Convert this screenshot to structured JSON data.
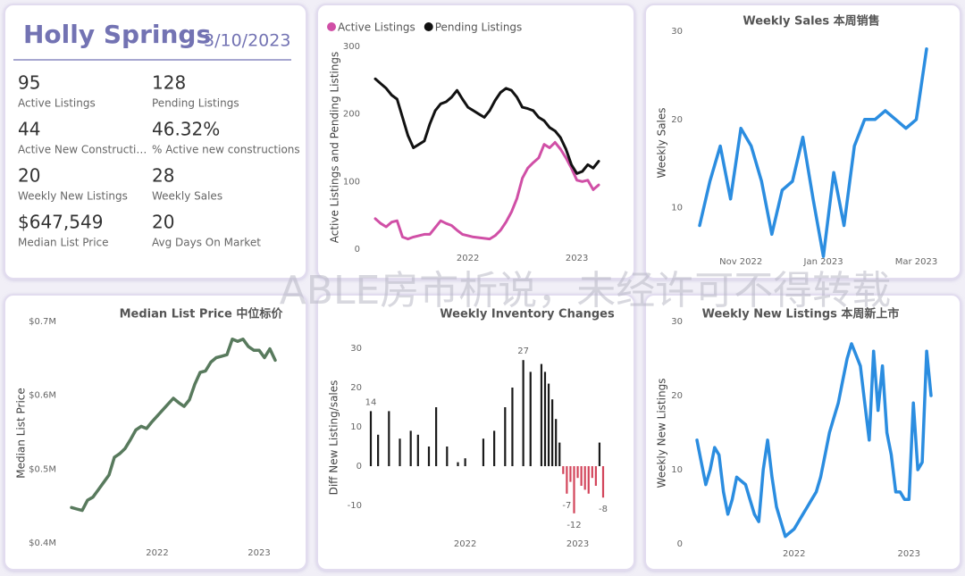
{
  "kpi_panel": {
    "title": "Holly Springs",
    "date": "3/10/2023",
    "items": [
      {
        "value": "95",
        "label": "Active Listings"
      },
      {
        "value": "128",
        "label": "Pending Listings"
      },
      {
        "value": "44",
        "label": "Active New Constructi…"
      },
      {
        "value": "46.32%",
        "label": "% Active new constructions"
      },
      {
        "value": "20",
        "label": "Weekly New Listings"
      },
      {
        "value": "28",
        "label": "Weekly Sales"
      },
      {
        "value": "$647,549",
        "label": "Median List Price"
      },
      {
        "value": "20",
        "label": "Avg Days On Market"
      }
    ]
  },
  "watermark": "ABLE房市析说，未经许可不得转载",
  "chart_data": [
    {
      "type": "line",
      "y_label": "Active Listings and Pending Listings",
      "legend": "top-left",
      "categories": [
        null,
        null,
        null,
        null,
        null,
        null,
        null,
        null,
        null,
        null,
        null,
        null,
        null,
        null,
        null,
        null,
        null,
        "2022",
        null,
        null,
        null,
        null,
        null,
        null,
        null,
        null,
        null,
        null,
        null,
        null,
        null,
        null,
        null,
        null,
        null,
        null,
        null,
        "2023",
        null,
        null,
        null,
        null
      ],
      "series": [
        {
          "name": "Active Listings",
          "color": "#d04fa6",
          "values": [
            45,
            38,
            33,
            40,
            42,
            18,
            15,
            18,
            20,
            22,
            22,
            32,
            42,
            38,
            35,
            28,
            22,
            20,
            18,
            17,
            16,
            15,
            20,
            28,
            40,
            55,
            75,
            105,
            120,
            128,
            135,
            155,
            150,
            158,
            148,
            135,
            120,
            102,
            100,
            102,
            88,
            95
          ]
        },
        {
          "name": "Pending Listings",
          "color": "#111111",
          "values": [
            252,
            245,
            238,
            228,
            222,
            195,
            168,
            150,
            155,
            160,
            185,
            205,
            215,
            218,
            225,
            235,
            222,
            210,
            205,
            200,
            195,
            205,
            220,
            232,
            238,
            235,
            225,
            210,
            208,
            205,
            195,
            190,
            180,
            175,
            165,
            148,
            125,
            112,
            115,
            125,
            120,
            130
          ]
        }
      ],
      "ylim": [
        0,
        300
      ],
      "yticks": [
        0,
        100,
        200,
        300
      ]
    },
    {
      "type": "line",
      "title": "Weekly Sales 本周销售",
      "y_label": "Weekly Sales",
      "categories": [
        null,
        null,
        null,
        null,
        "Nov 2022",
        null,
        null,
        null,
        null,
        null,
        null,
        null,
        "Jan 2023",
        null,
        null,
        null,
        null,
        null,
        null,
        null,
        null,
        "Mar 2023",
        null
      ],
      "values": [
        8,
        13,
        17,
        11,
        19,
        17,
        13,
        7,
        12,
        13,
        18,
        11,
        4.5,
        14,
        8,
        17,
        20,
        20,
        21,
        20,
        19,
        20,
        28
      ],
      "color": "#2b8de0",
      "ylim": [
        4,
        30
      ],
      "yticks": [
        10,
        20,
        30
      ]
    },
    {
      "type": "line",
      "title": "Median List Price  中位标价",
      "y_label": "Median List Price",
      "categories": [
        null,
        null,
        null,
        null,
        null,
        null,
        null,
        null,
        null,
        null,
        null,
        null,
        null,
        null,
        null,
        null,
        "2022",
        null,
        null,
        null,
        null,
        null,
        null,
        null,
        null,
        null,
        null,
        null,
        null,
        null,
        null,
        null,
        null,
        null,
        null,
        "2023",
        null,
        null,
        null
      ],
      "values": [
        448000,
        446000,
        444000,
        458000,
        462000,
        472000,
        482000,
        492000,
        516000,
        521000,
        528000,
        540000,
        553000,
        558000,
        555000,
        564000,
        572000,
        580000,
        588000,
        596000,
        590000,
        585000,
        594000,
        615000,
        631000,
        633000,
        645000,
        651000,
        653000,
        655000,
        676000,
        673000,
        676000,
        666000,
        661000,
        661000,
        651000,
        663000,
        647549
      ],
      "color": "#587a5d",
      "ylim": [
        400000,
        700000
      ],
      "yticks": [
        {
          "value": 400000,
          "label": "$0.4M"
        },
        {
          "value": 500000,
          "label": "$0.5M"
        },
        {
          "value": 600000,
          "label": "$0.6M"
        },
        {
          "value": 700000,
          "label": "$0.7M"
        }
      ]
    },
    {
      "type": "bar",
      "title": "Weekly Inventory Changes",
      "y_label": "Diff New Listing/sales",
      "categories": [
        null,
        null,
        null,
        null,
        null,
        null,
        null,
        null,
        null,
        null,
        null,
        null,
        null,
        null,
        null,
        null,
        null,
        null,
        null,
        null,
        null,
        null,
        null,
        null,
        null,
        null,
        "2022",
        null,
        null,
        null,
        null,
        null,
        null,
        null,
        null,
        null,
        null,
        null,
        null,
        null,
        null,
        null,
        null,
        null,
        null,
        null,
        null,
        null,
        null,
        null,
        null,
        null,
        null,
        null,
        null,
        null,
        null,
        "2023",
        null,
        null,
        null,
        null,
        null,
        null,
        null
      ],
      "values": [
        14,
        null,
        8,
        null,
        null,
        14,
        null,
        null,
        7,
        null,
        null,
        9,
        null,
        8,
        null,
        null,
        5,
        null,
        15,
        null,
        null,
        5,
        null,
        null,
        1,
        null,
        2,
        null,
        null,
        null,
        null,
        7,
        null,
        null,
        9,
        null,
        null,
        15,
        null,
        20,
        null,
        null,
        27,
        null,
        24,
        null,
        null,
        26,
        24,
        21,
        17,
        12,
        6,
        -2,
        -7,
        -4,
        -12,
        -3,
        -5,
        -6,
        -7,
        -3,
        -5,
        6,
        -8
      ],
      "value_labels": [
        "14",
        null,
        null,
        null,
        null,
        null,
        null,
        null,
        null,
        null,
        null,
        null,
        null,
        null,
        null,
        null,
        null,
        null,
        null,
        null,
        null,
        null,
        null,
        null,
        null,
        null,
        null,
        null,
        null,
        null,
        null,
        null,
        null,
        null,
        null,
        null,
        null,
        null,
        null,
        null,
        null,
        null,
        "27",
        null,
        null,
        null,
        null,
        null,
        null,
        null,
        null,
        null,
        null,
        null,
        "-7",
        null,
        "-12",
        null,
        null,
        null,
        null,
        null,
        null,
        null,
        "-8"
      ],
      "positive_color": "#1a1a1a",
      "negative_color": "#d3455b",
      "ylim": [
        -13,
        32
      ],
      "yticks": [
        -10,
        0,
        10,
        20,
        30
      ]
    },
    {
      "type": "line",
      "title": "Weekly New Listings  本周新上市",
      "y_label": "Weekly New Listings",
      "categories": [
        null,
        null,
        null,
        null,
        null,
        null,
        null,
        null,
        null,
        null,
        null,
        null,
        null,
        null,
        null,
        null,
        null,
        null,
        null,
        null,
        null,
        null,
        "2022",
        null,
        null,
        null,
        null,
        null,
        null,
        null,
        null,
        null,
        null,
        null,
        null,
        null,
        null,
        null,
        null,
        null,
        null,
        null,
        null,
        null,
        null,
        null,
        null,
        null,
        "2023",
        null,
        null,
        null,
        null,
        null
      ],
      "values": [
        14,
        11,
        8,
        10,
        13,
        12,
        7,
        4,
        6,
        9,
        8.5,
        8,
        6,
        4,
        3,
        10,
        14,
        9,
        5,
        3,
        1,
        1.5,
        2,
        3,
        4,
        5,
        6,
        7,
        9,
        12,
        15,
        17,
        19,
        22,
        25,
        27,
        25.5,
        24,
        19,
        14,
        26,
        18,
        24,
        15,
        12,
        7,
        7,
        6,
        6,
        19,
        10,
        11,
        26,
        20
      ],
      "color": "#2b8de0",
      "ylim": [
        0,
        30
      ],
      "yticks": [
        0,
        10,
        20,
        30
      ]
    }
  ]
}
